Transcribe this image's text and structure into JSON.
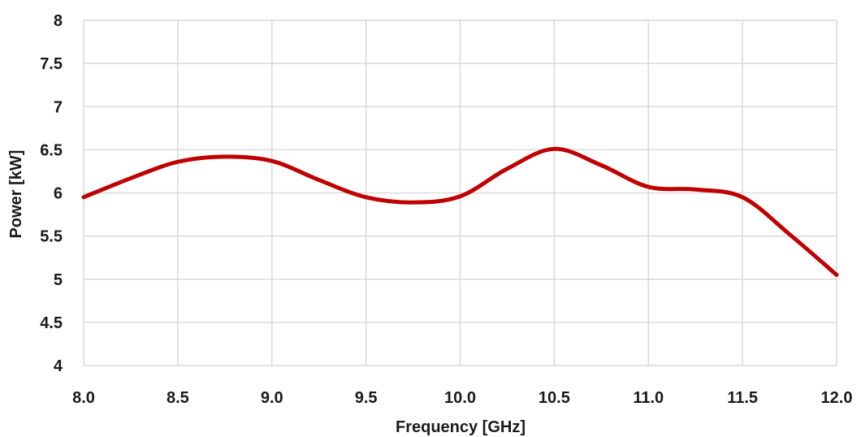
{
  "chart_data": {
    "type": "line",
    "title": "",
    "xlabel": "Frequency [GHz]",
    "ylabel": "Power [kW]",
    "xlim": [
      8.0,
      12.0
    ],
    "ylim": [
      4,
      8
    ],
    "x_ticks": [
      "8.0",
      "8.5",
      "9.0",
      "9.5",
      "10.0",
      "10.5",
      "11.0",
      "11.5",
      "12.0"
    ],
    "y_ticks": [
      "4",
      "4.5",
      "5",
      "5.5",
      "6",
      "6.5",
      "7",
      "7.5",
      "8"
    ],
    "grid": true,
    "legend": "none",
    "series": [
      {
        "color": "#c00000",
        "x": [
          8.0,
          8.25,
          8.5,
          8.75,
          9.0,
          9.25,
          9.5,
          9.75,
          10.0,
          10.25,
          10.5,
          10.75,
          11.0,
          11.25,
          11.5,
          11.75,
          12.0
        ],
        "y": [
          5.95,
          6.17,
          6.36,
          6.42,
          6.37,
          6.15,
          5.95,
          5.89,
          5.96,
          6.28,
          6.51,
          6.32,
          6.07,
          6.04,
          5.95,
          5.52,
          5.05
        ]
      }
    ]
  }
}
